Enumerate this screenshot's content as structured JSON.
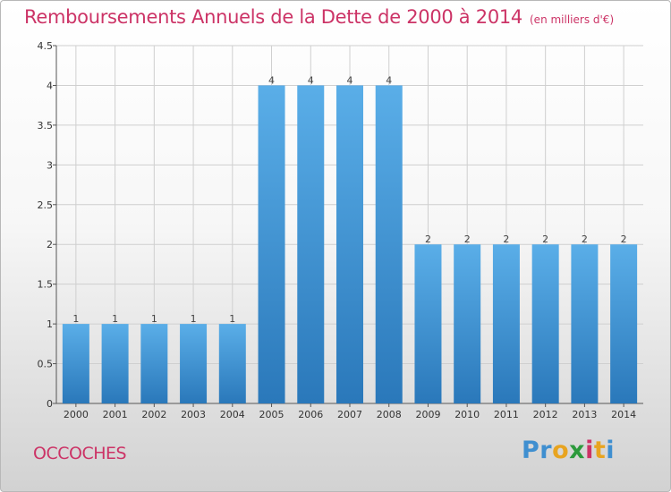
{
  "chart_data": {
    "type": "bar",
    "title": "Remboursements Annuels de la Dette de 2000 à 2014",
    "unit": "(en milliers d'€)",
    "categories": [
      "2000",
      "2001",
      "2002",
      "2003",
      "2004",
      "2005",
      "2006",
      "2007",
      "2008",
      "2009",
      "2010",
      "2011",
      "2012",
      "2013",
      "2014"
    ],
    "values": [
      1,
      1,
      1,
      1,
      1,
      4,
      4,
      4,
      4,
      2,
      2,
      2,
      2,
      2,
      2
    ],
    "data_labels": [
      "1",
      "1",
      "1",
      "1",
      "1",
      "4",
      "4",
      "4",
      "4",
      "2",
      "2",
      "2",
      "2",
      "2",
      "2"
    ],
    "xlabel": "",
    "ylabel": "",
    "ylim": [
      0,
      4.5
    ],
    "yticks": [
      0,
      0.5,
      1,
      1.5,
      2,
      2.5,
      3,
      3.5,
      4,
      4.5
    ],
    "ytick_labels": [
      "0",
      "0.5",
      "1",
      "1.5",
      "2",
      "2.5",
      "3",
      "3.5",
      "4",
      "4.5"
    ],
    "grid": true,
    "legend": "none",
    "bar_color": "#4d9fde",
    "bar_color_dark": "#2577b8"
  },
  "footer": {
    "commune": "OCCOCHES",
    "logo_parts": [
      "Pr",
      "o",
      "x",
      "i",
      "t",
      "i"
    ]
  },
  "colors": {
    "title": "#cc3366",
    "grid": "#cfcfcf",
    "axis": "#555555"
  }
}
